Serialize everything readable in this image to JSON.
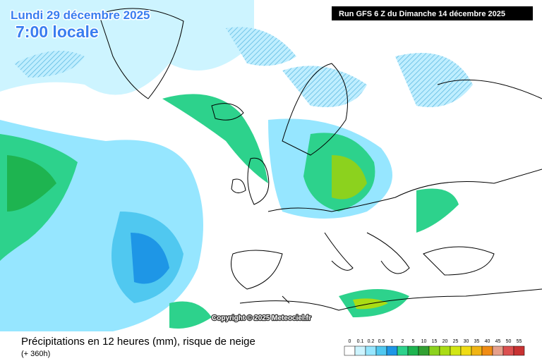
{
  "header": {
    "date": "Lundi 29 décembre 2025",
    "time": "7:00 locale",
    "run": "Run GFS 6 Z du Dimanche 14 décembre 2025"
  },
  "copyright": "Copyright © 2025 Meteociel.fr",
  "footer": {
    "title": "Précipitations en 12 heures (mm), risque de neige",
    "subtitle": "(+ 360h)"
  },
  "legend": {
    "items": [
      {
        "label": "0",
        "color": "#ffffff"
      },
      {
        "label": "0.1",
        "color": "#cdf4ff"
      },
      {
        "label": "0.2",
        "color": "#96e6ff"
      },
      {
        "label": "0.5",
        "color": "#50c8f0"
      },
      {
        "label": "1",
        "color": "#1e96e6"
      },
      {
        "label": "2",
        "color": "#2dd28c"
      },
      {
        "label": "5",
        "color": "#1eb450"
      },
      {
        "label": "10",
        "color": "#32a032"
      },
      {
        "label": "15",
        "color": "#8cd21e"
      },
      {
        "label": "20",
        "color": "#aadc14"
      },
      {
        "label": "25",
        "color": "#d2e614"
      },
      {
        "label": "30",
        "color": "#f0dc14"
      },
      {
        "label": "35",
        "color": "#f0b414"
      },
      {
        "label": "40",
        "color": "#f08c14"
      },
      {
        "label": "45",
        "color": "#e6a08c"
      },
      {
        "label": "50",
        "color": "#dc5050"
      },
      {
        "label": "55",
        "color": "#c83232"
      }
    ]
  }
}
